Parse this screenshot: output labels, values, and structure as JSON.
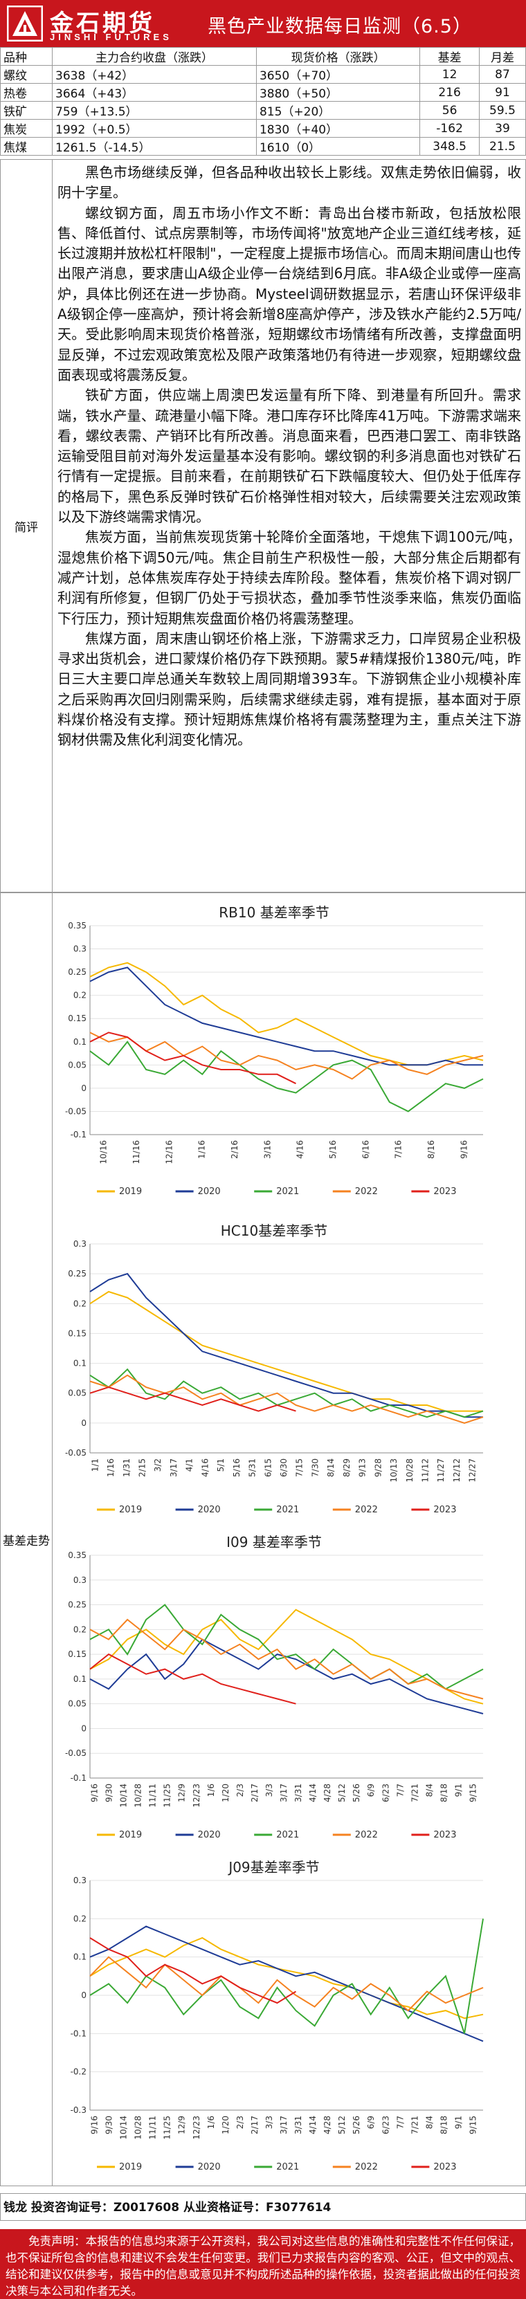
{
  "header": {
    "logo_cn": "金石期货",
    "logo_en": "JINSHI FUTURES",
    "title": "黑色产业数据每日监测（6.5）"
  },
  "table": {
    "headers": [
      "品种",
      "主力合约收盘（涨跌）",
      "现货价格（涨跌）",
      "基差",
      "月差"
    ],
    "rows": [
      [
        "螺纹",
        "3638（+42）",
        "3650（+70）",
        "12",
        "87"
      ],
      [
        "热卷",
        "3664（+43）",
        "3880（+50）",
        "216",
        "91"
      ],
      [
        "铁矿",
        "759（+13.5）",
        "815（+20）",
        "56",
        "59.5"
      ],
      [
        "焦炭",
        "1992（+0.5）",
        "1830（+40）",
        "-162",
        "39"
      ],
      [
        "焦煤",
        "1261.5（-14.5）",
        "1610（0）",
        "348.5",
        "21.5"
      ]
    ]
  },
  "commentary": {
    "label": "简评",
    "paragraphs": [
      "黑色市场继续反弹，但各品种收出较长上影线。双焦走势依旧偏弱，收阴十字星。",
      "螺纹钢方面，周五市场小作文不断：青岛出台楼市新政，包括放松限售、降低首付、试点房票制等，市场传闻将\"放宽地产企业三道红线考核，延长过渡期并放松杠杆限制\"，一定程度上提振市场信心。而周末期间唐山也传出限产消息，要求唐山A级企业停一台烧结到6月底。非A级企业或停一座高炉，具体比例还在进一步协商。Mysteel调研数据显示，若唐山环保评级非A级钢企停一座高炉，预计将会新增8座高炉停产，涉及铁水产能约2.5万吨/天。受此影响周末现货价格普涨，短期螺纹市场情绪有所改善，支撑盘面明显反弹，不过宏观政策宽松及限产政策落地仍有待进一步观察，短期螺纹盘面表现或将震荡反复。",
      "铁矿方面，供应端上周澳巴发运量有所下降、到港量有所回升。需求端，铁水产量、疏港量小幅下降。港口库存环比降库41万吨。下游需求端来看，螺纹表需、产销环比有所改善。消息面来看，巴西港口罢工、南非铁路运输受阻目前对海外发运量基本没有影响。螺纹钢的利多消息面也对铁矿石行情有一定提振。目前来看，在前期铁矿石下跌幅度较大、但仍处于低库存的格局下，黑色系反弹时铁矿石价格弹性相对较大，后续需要关注宏观政策以及下游终端需求情况。",
      "焦炭方面，当前焦炭现货第十轮降价全面落地，干熄焦下调100元/吨，湿熄焦价格下调50元/吨。焦企目前生产积极性一般，大部分焦企后期都有减产计划，总体焦炭库存处于持续去库阶段。整体看，焦炭价格下调对钢厂利润有所修复，但钢厂仍处于亏损状态，叠加季节性淡季来临，焦炭仍面临下行压力，预计短期焦炭盘面价格仍将震荡整理。",
      "焦煤方面，周末唐山钢坯价格上涨，下游需求乏力，口岸贸易企业积极寻求出货机会，进口蒙煤价格仍存下跌预期。蒙5#精煤报价1380元/吨，昨日三大主要口岸总通关车数较上周同期增393车。下游钢焦企业小规模补库之后采购再次回归刚需采购，后续需求继续走弱，难有提振，基本面对于原料煤价格没有支撑。预计短期炼焦煤价格将有震荡整理为主，重点关注下游钢材供需及焦化利润变化情况。"
    ]
  },
  "basis": {
    "label": "基差走势"
  },
  "colors": {
    "brand": "#c8161d",
    "s2019": "#f6b800",
    "s2020": "#1f3c96",
    "s2021": "#3aa935",
    "s2022": "#f58220",
    "s2023": "#e0201b"
  },
  "chart_data": [
    {
      "type": "line",
      "title": "RB10 基差率季节",
      "ylim": [
        -0.1,
        0.35
      ],
      "yticks": [
        "0.35",
        "0.3",
        "0.25",
        "0.2",
        "0.15",
        "0.1",
        "0.05",
        "0",
        "-0.05",
        "-0.1"
      ],
      "xticks": [
        "10/16",
        "11/16",
        "12/16",
        "1/16",
        "2/16",
        "3/16",
        "4/16",
        "5/16",
        "6/16",
        "7/16",
        "8/16",
        "9/16"
      ],
      "series": [
        {
          "name": "2019",
          "values": [
            0.24,
            0.26,
            0.27,
            0.25,
            0.22,
            0.18,
            0.2,
            0.17,
            0.15,
            0.12,
            0.13,
            0.15,
            0.13,
            0.11,
            0.09,
            0.07,
            0.06,
            0.05,
            0.05,
            0.06,
            0.07,
            0.06
          ]
        },
        {
          "name": "2020",
          "values": [
            0.23,
            0.25,
            0.26,
            0.22,
            0.18,
            0.16,
            0.14,
            0.13,
            0.12,
            0.11,
            0.1,
            0.09,
            0.08,
            0.08,
            0.07,
            0.06,
            0.05,
            0.05,
            0.05,
            0.06,
            0.05,
            0.05
          ]
        },
        {
          "name": "2021",
          "values": [
            0.08,
            0.05,
            0.1,
            0.04,
            0.03,
            0.06,
            0.03,
            0.08,
            0.05,
            0.02,
            0.0,
            -0.01,
            0.02,
            0.05,
            0.06,
            0.04,
            -0.03,
            -0.05,
            -0.02,
            0.01,
            0.0,
            0.02
          ]
        },
        {
          "name": "2022",
          "values": [
            0.12,
            0.1,
            0.11,
            0.08,
            0.1,
            0.07,
            0.09,
            0.06,
            0.05,
            0.07,
            0.06,
            0.04,
            0.05,
            0.04,
            0.02,
            0.05,
            0.06,
            0.04,
            0.03,
            0.05,
            0.06,
            0.07
          ]
        },
        {
          "name": "2023",
          "values": [
            0.1,
            0.12,
            0.11,
            0.08,
            0.06,
            0.07,
            0.05,
            0.04,
            0.04,
            0.03,
            0.03,
            0.01
          ]
        }
      ]
    },
    {
      "type": "line",
      "title": "HC10基差率季节",
      "ylim": [
        -0.05,
        0.3
      ],
      "yticks": [
        "0.3",
        "0.25",
        "0.2",
        "0.15",
        "0.1",
        "0.05",
        "0",
        "-0.05"
      ],
      "xticks": [
        "1/1",
        "1/16",
        "1/31",
        "2/15",
        "3/2",
        "3/17",
        "4/1",
        "4/16",
        "5/1",
        "5/16",
        "5/31",
        "6/15",
        "6/30",
        "7/15",
        "7/30",
        "8/14",
        "8/29",
        "9/13",
        "9/28",
        "10/13",
        "10/28",
        "11/12",
        "11/27",
        "12/12",
        "12/27"
      ],
      "series": [
        {
          "name": "2019",
          "values": [
            0.2,
            0.22,
            0.21,
            0.19,
            0.17,
            0.15,
            0.13,
            0.12,
            0.11,
            0.1,
            0.09,
            0.08,
            0.07,
            0.06,
            0.05,
            0.04,
            0.04,
            0.03,
            0.03,
            0.02,
            0.02,
            0.02
          ]
        },
        {
          "name": "2020",
          "values": [
            0.22,
            0.24,
            0.25,
            0.21,
            0.18,
            0.15,
            0.12,
            0.11,
            0.1,
            0.09,
            0.08,
            0.07,
            0.06,
            0.05,
            0.05,
            0.04,
            0.03,
            0.03,
            0.02,
            0.02,
            0.01,
            0.01
          ]
        },
        {
          "name": "2021",
          "values": [
            0.08,
            0.06,
            0.09,
            0.05,
            0.04,
            0.07,
            0.05,
            0.06,
            0.04,
            0.05,
            0.03,
            0.04,
            0.05,
            0.03,
            0.04,
            0.02,
            0.03,
            0.02,
            0.01,
            0.02,
            0.01,
            0.02
          ]
        },
        {
          "name": "2022",
          "values": [
            0.07,
            0.06,
            0.08,
            0.06,
            0.05,
            0.06,
            0.04,
            0.05,
            0.03,
            0.04,
            0.05,
            0.03,
            0.02,
            0.03,
            0.02,
            0.03,
            0.02,
            0.01,
            0.02,
            0.01,
            0.0,
            0.01
          ]
        },
        {
          "name": "2023",
          "values": [
            0.05,
            0.06,
            0.05,
            0.04,
            0.05,
            0.04,
            0.03,
            0.04,
            0.03,
            0.02,
            0.03,
            0.02
          ]
        }
      ]
    },
    {
      "type": "line",
      "title": "I09 基差率季节",
      "ylim": [
        -0.1,
        0.35
      ],
      "yticks": [
        "0.35",
        "0.3",
        "0.25",
        "0.2",
        "0.15",
        "0.1",
        "0.05",
        "0",
        "-0.05",
        "-0.1"
      ],
      "xticks": [
        "9/16",
        "9/30",
        "10/14",
        "10/28",
        "11/11",
        "11/25",
        "12/9",
        "12/23",
        "1/6",
        "1/20",
        "2/3",
        "2/17",
        "3/3",
        "3/17",
        "3/31",
        "4/14",
        "4/28",
        "5/12",
        "5/26",
        "6/9",
        "6/23",
        "7/7",
        "7/21",
        "8/4",
        "8/18",
        "9/1",
        "9/15"
      ],
      "series": [
        {
          "name": "2019",
          "values": [
            0.12,
            0.14,
            0.18,
            0.2,
            0.17,
            0.15,
            0.2,
            0.22,
            0.18,
            0.16,
            0.2,
            0.24,
            0.22,
            0.2,
            0.18,
            0.15,
            0.14,
            0.12,
            0.1,
            0.08,
            0.06,
            0.05
          ]
        },
        {
          "name": "2020",
          "values": [
            0.1,
            0.08,
            0.12,
            0.15,
            0.1,
            0.13,
            0.18,
            0.16,
            0.14,
            0.12,
            0.15,
            0.14,
            0.12,
            0.1,
            0.11,
            0.09,
            0.1,
            0.08,
            0.06,
            0.05,
            0.04,
            0.03
          ]
        },
        {
          "name": "2021",
          "values": [
            0.18,
            0.2,
            0.15,
            0.22,
            0.25,
            0.2,
            0.17,
            0.23,
            0.2,
            0.18,
            0.14,
            0.15,
            0.12,
            0.16,
            0.13,
            0.1,
            0.12,
            0.09,
            0.11,
            0.08,
            0.1,
            0.12
          ]
        },
        {
          "name": "2022",
          "values": [
            0.2,
            0.18,
            0.22,
            0.19,
            0.16,
            0.2,
            0.18,
            0.15,
            0.17,
            0.14,
            0.16,
            0.12,
            0.14,
            0.11,
            0.13,
            0.1,
            0.12,
            0.09,
            0.1,
            0.08,
            0.07,
            0.06
          ]
        },
        {
          "name": "2023",
          "values": [
            0.12,
            0.15,
            0.13,
            0.11,
            0.12,
            0.1,
            0.11,
            0.09,
            0.08,
            0.07,
            0.06,
            0.05
          ]
        }
      ]
    },
    {
      "type": "line",
      "title": "J09基差率季节",
      "ylim": [
        -0.3,
        0.3
      ],
      "yticks": [
        "0.3",
        "0.2",
        "0.1",
        "0",
        "-0.1",
        "-0.2",
        "-0.3"
      ],
      "xticks": [
        "9/16",
        "9/30",
        "10/14",
        "10/28",
        "11/11",
        "11/25",
        "12/9",
        "12/23",
        "1/6",
        "1/20",
        "2/3",
        "2/17",
        "3/3",
        "3/17",
        "3/31",
        "4/14",
        "4/28",
        "5/12",
        "5/26",
        "6/9",
        "6/23",
        "7/7",
        "7/21",
        "8/4",
        "8/18",
        "9/1",
        "9/15"
      ],
      "series": [
        {
          "name": "2019",
          "values": [
            0.05,
            0.08,
            0.1,
            0.12,
            0.1,
            0.13,
            0.15,
            0.12,
            0.1,
            0.08,
            0.07,
            0.06,
            0.05,
            0.03,
            0.02,
            0.0,
            -0.02,
            -0.03,
            -0.05,
            -0.04,
            -0.06,
            -0.05
          ]
        },
        {
          "name": "2020",
          "values": [
            0.1,
            0.12,
            0.15,
            0.18,
            0.16,
            0.14,
            0.12,
            0.1,
            0.08,
            0.09,
            0.07,
            0.05,
            0.06,
            0.04,
            0.02,
            0.0,
            -0.02,
            -0.04,
            -0.06,
            -0.08,
            -0.1,
            -0.12
          ]
        },
        {
          "name": "2021",
          "values": [
            0.0,
            0.03,
            -0.02,
            0.05,
            0.02,
            -0.05,
            0.0,
            0.04,
            -0.03,
            -0.06,
            0.02,
            -0.04,
            -0.08,
            0.0,
            0.03,
            -0.05,
            0.02,
            -0.06,
            0.0,
            0.05,
            -0.1,
            0.2
          ]
        },
        {
          "name": "2022",
          "values": [
            0.05,
            0.1,
            0.06,
            0.02,
            0.08,
            0.04,
            0.0,
            0.05,
            0.02,
            -0.02,
            0.04,
            0.0,
            -0.03,
            0.02,
            -0.01,
            0.03,
            0.0,
            -0.04,
            0.01,
            -0.02,
            0.0,
            0.02
          ]
        },
        {
          "name": "2023",
          "values": [
            0.15,
            0.12,
            0.1,
            0.05,
            0.08,
            0.06,
            0.03,
            0.05,
            0.02,
            0.0,
            -0.02,
            0.01
          ]
        }
      ]
    }
  ],
  "footer": {
    "contact": "钱龙 投资咨询证号：Z0017608 从业资格证号：F3077614",
    "disclaimer": "免责声明：本报告的信息均来源于公开资料，我公司对这些信息的准确性和完整性不作任何保证，也不保证所包含的信息和建议不会发生任何变更。我们已力求报告内容的客观、公正，但文中的观点、结论和建议仅供参考，报告中的信息或意见并不构成所述品种的操作依据，投资者据此做出的任何投资决策与本公司和作者无关。"
  }
}
